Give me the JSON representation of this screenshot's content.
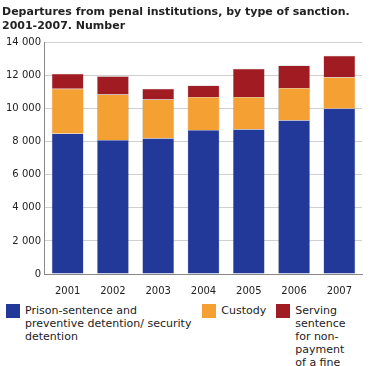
{
  "chart_data": {
    "type": "bar",
    "stacked": true,
    "title": [
      "Departures from penal institutions, by type of sanction.",
      "2001-2007. Number"
    ],
    "categories": [
      "2001",
      "2002",
      "2003",
      "2004",
      "2005",
      "2006",
      "2007"
    ],
    "series": [
      {
        "name": "Prison-sentence and preventive detention/ security detention",
        "color": "#22399a",
        "values": [
          8500,
          8100,
          8200,
          8700,
          8750,
          9300,
          10000
        ]
      },
      {
        "name": "Custody",
        "color": "#f5a033",
        "values": [
          2700,
          2750,
          2350,
          2000,
          1950,
          1950,
          1900
        ]
      },
      {
        "name": "Serving sentence for non-payment of a fine",
        "color": "#a01c22",
        "values": [
          900,
          1100,
          650,
          700,
          1700,
          1350,
          1300
        ]
      }
    ],
    "ylim": [
      0,
      14000
    ],
    "yticks": [
      0,
      {
        "value": 2000,
        "label": "2 000"
      },
      {
        "value": 4000,
        "label": "4 000"
      },
      {
        "value": 6000,
        "label": "6 000"
      },
      {
        "value": 8000,
        "label": "8 000"
      },
      {
        "value": 10000,
        "label": "10 000"
      },
      {
        "value": 12000,
        "label": "12 000"
      },
      {
        "value": 14000,
        "label": "14 000"
      }
    ],
    "grid": true,
    "legend": "bottom"
  }
}
